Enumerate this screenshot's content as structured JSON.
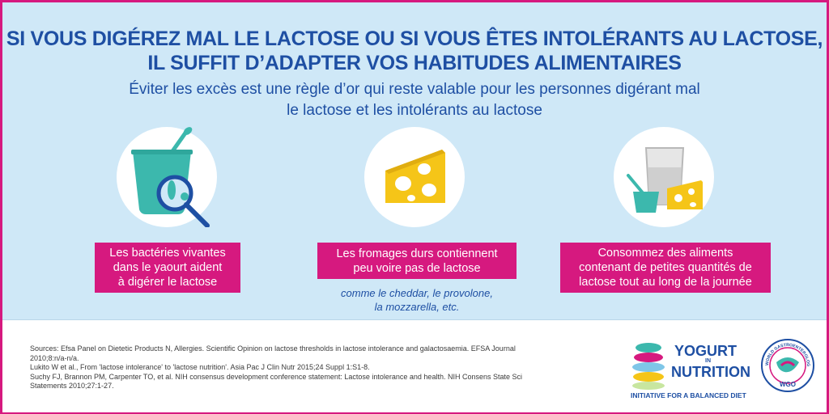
{
  "header": {
    "title_line1": "SI VOUS DIGÉREZ MAL LE LACTOSE OU SI VOUS ÊTES INTOLÉRANTS AU LACTOSE,",
    "title_line2": "IL SUFFIT D’ADAPTER VOS HABITUDES ALIMENTAIRES",
    "subtitle_line1": "Éviter les excès est une règle d’or qui reste valable pour les personnes digérant mal",
    "subtitle_line2": "le lactose et les intolérants au lactose"
  },
  "tips": [
    {
      "icon": "yogurt-magnifier-icon",
      "lines": [
        "Les bactéries vivantes",
        "dans le yaourt aident",
        "à digérer le lactose"
      ]
    },
    {
      "icon": "cheese-icon",
      "lines": [
        "Les fromages durs contiennent",
        "peu voire pas de lactose"
      ],
      "note": [
        "comme le cheddar, le provolone,",
        "la mozzarella, etc."
      ]
    },
    {
      "icon": "glass-yogurt-cheese-icon",
      "lines": [
        "Consommez des aliments",
        "contenant de petites quantités de",
        "lactose tout au long de la journée"
      ]
    }
  ],
  "sources": [
    "Sources: Efsa Panel on Dietetic Products N, Allergies. Scientific Opinion on lactose thresholds in lactose intolerance and galactosaemia. EFSA Journal",
    "2010;8:n/a-n/a.",
    "Lukito W et al., From 'lactose intolerance' to 'lactose nutrition'. Asia Pac J Clin Nutr 2015;24 Suppl 1:S1-8.",
    "Suchy FJ, Brannon PM, Carpenter TO, et al. NIH consensus development conference statement: Lactose intolerance and health. NIH Consens State Sci",
    "Statements 2010;27:1-27."
  ],
  "logo": {
    "word1": "YOGURT",
    "word2": "IN",
    "word3": "NUTRITION",
    "tagline": "INITIATIVE FOR A BALANCED DIET"
  },
  "wgo": {
    "ring_text": "WORLD GASTROENTEROLOGY ORGANISATION",
    "abbr": "WGO"
  },
  "colors": {
    "accent_pink": "#d6197f",
    "brand_blue": "#1e4fa3",
    "background_blue": "#cfe8f7",
    "cheese_yellow": "#f5c518",
    "yogurt_teal": "#3cb8ad"
  }
}
